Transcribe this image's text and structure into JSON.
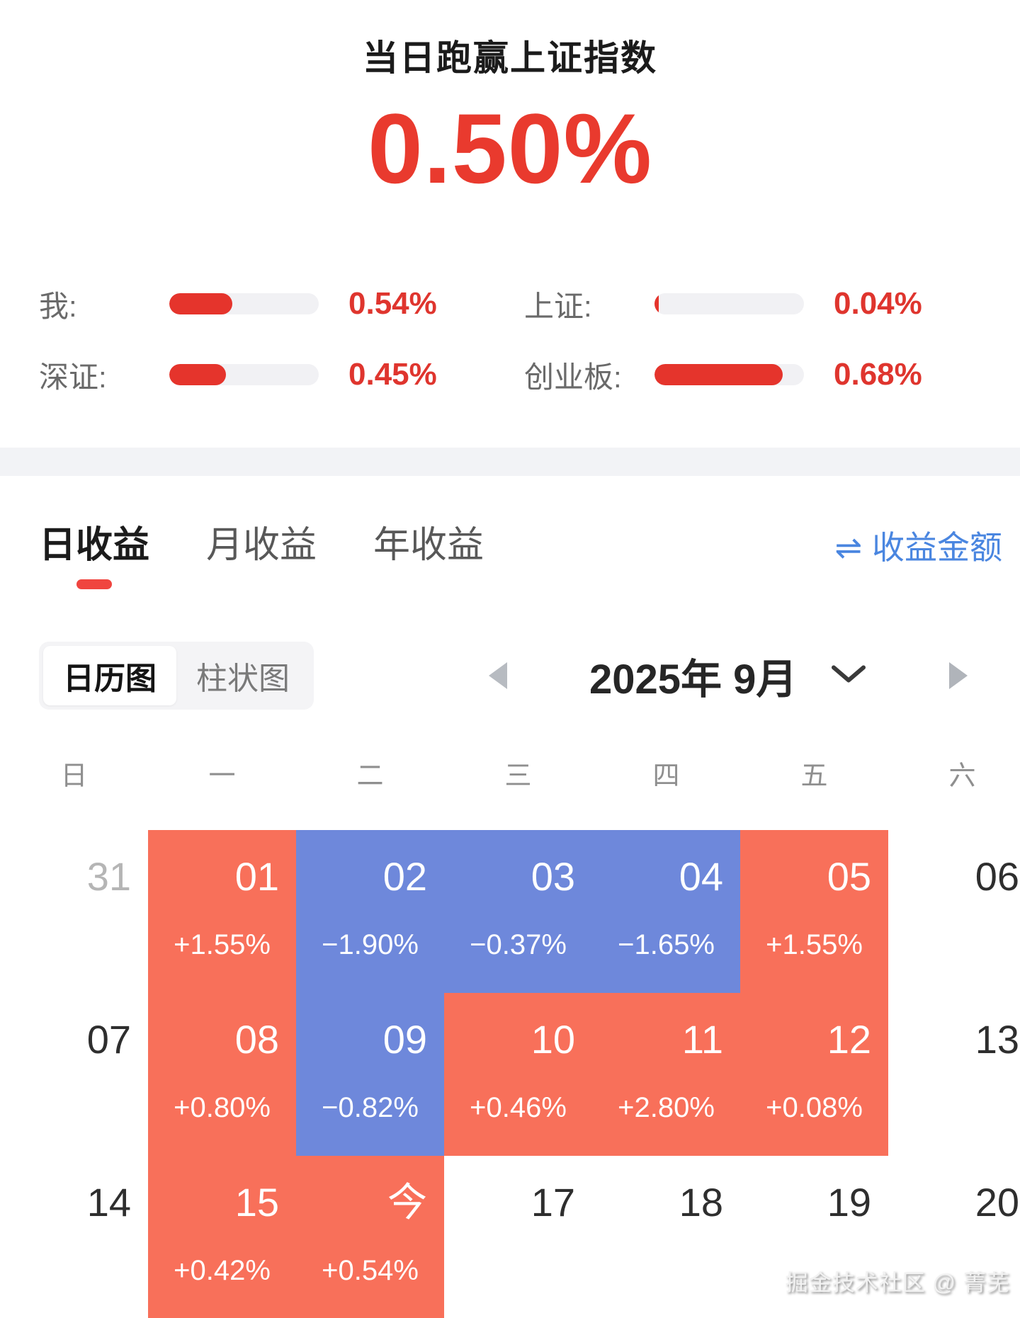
{
  "header": {
    "title": "当日跑赢上证指数",
    "value": "0.50%"
  },
  "stats": {
    "items": [
      {
        "label": "我:",
        "value": "0.54%",
        "fill_pct": 42
      },
      {
        "label": "上证:",
        "value": "0.04%",
        "fill_pct": 3
      },
      {
        "label": "深证:",
        "value": "0.45%",
        "fill_pct": 38
      },
      {
        "label": "创业板:",
        "value": "0.68%",
        "fill_pct": 86
      }
    ]
  },
  "tabs": {
    "items": [
      {
        "label": "日收益",
        "active": true
      },
      {
        "label": "月收益",
        "active": false
      },
      {
        "label": "年收益",
        "active": false
      }
    ],
    "amount_toggle": {
      "icon": "swap-arrows",
      "icon_glyph": "⇌",
      "label": "收益金额"
    }
  },
  "view_toggle": {
    "items": [
      {
        "label": "日历图",
        "active": true
      },
      {
        "label": "柱状图",
        "active": false
      }
    ]
  },
  "month_nav": {
    "label": "2025年 9月",
    "prev_icon": "left-arrow",
    "next_icon": "right-arrow",
    "dropdown_icon": "chevron-down"
  },
  "calendar": {
    "weekdays": [
      "日",
      "一",
      "二",
      "三",
      "四",
      "五",
      "六"
    ],
    "rows": [
      [
        {
          "day": "31",
          "type": "prev"
        },
        {
          "day": "01",
          "pct": "+1.55%",
          "type": "red"
        },
        {
          "day": "02",
          "pct": "−1.90%",
          "type": "blue"
        },
        {
          "day": "03",
          "pct": "−0.37%",
          "type": "blue"
        },
        {
          "day": "04",
          "pct": "−1.65%",
          "type": "blue"
        },
        {
          "day": "05",
          "pct": "+1.55%",
          "type": "red"
        },
        {
          "day": "06",
          "type": "plain"
        }
      ],
      [
        {
          "day": "07",
          "type": "plain"
        },
        {
          "day": "08",
          "pct": "+0.80%",
          "type": "red"
        },
        {
          "day": "09",
          "pct": "−0.82%",
          "type": "blue"
        },
        {
          "day": "10",
          "pct": "+0.46%",
          "type": "red"
        },
        {
          "day": "11",
          "pct": "+2.80%",
          "type": "red"
        },
        {
          "day": "12",
          "pct": "+0.08%",
          "type": "red"
        },
        {
          "day": "13",
          "type": "plain"
        }
      ],
      [
        {
          "day": "14",
          "type": "plain"
        },
        {
          "day": "15",
          "pct": "+0.42%",
          "type": "red"
        },
        {
          "day": "今",
          "pct": "+0.54%",
          "type": "red",
          "today": true
        },
        {
          "day": "17",
          "type": "plain"
        },
        {
          "day": "18",
          "type": "plain"
        },
        {
          "day": "19",
          "type": "plain"
        },
        {
          "day": "20",
          "type": "plain"
        }
      ]
    ]
  },
  "watermark": "掘金技术社区 @ 菁芜",
  "colors": {
    "accent_red": "#e93a2e",
    "bar_red": "#e5342c",
    "tab_indicator_red": "#f0453f",
    "cell_red": "#f8705a",
    "cell_blue": "#6e88db",
    "link_blue": "#4a86e0",
    "divider_gray": "#f2f3f6"
  }
}
